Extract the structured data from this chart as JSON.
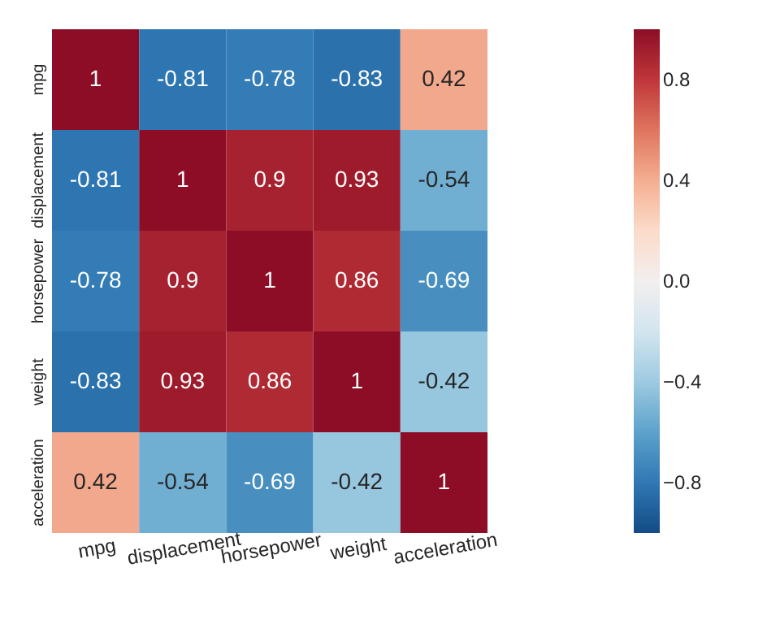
{
  "chart_data": {
    "type": "heatmap",
    "categories": [
      "mpg",
      "displacement",
      "horsepower",
      "weight",
      "acceleration"
    ],
    "y_categories": [
      "mpg",
      "displacement",
      "horsepower",
      "weight",
      "acceleration"
    ],
    "cells": [
      [
        1,
        -0.81,
        -0.78,
        -0.83,
        0.42
      ],
      [
        -0.81,
        1,
        0.9,
        0.93,
        -0.54
      ],
      [
        -0.78,
        0.9,
        1,
        0.86,
        -0.69
      ],
      [
        -0.83,
        0.93,
        0.86,
        1,
        -0.42
      ],
      [
        0.42,
        -0.54,
        -0.69,
        -0.42,
        1
      ]
    ],
    "clim": [
      -1,
      1
    ],
    "cticks": [
      {
        "value": 0.8,
        "label": "0.8"
      },
      {
        "value": 0.4,
        "label": "0.4"
      },
      {
        "value": 0,
        "label": "0.0"
      },
      {
        "value": -0.4,
        "label": "−0.4"
      },
      {
        "value": -0.8,
        "label": "−0.8"
      }
    ],
    "data_labels": true
  }
}
